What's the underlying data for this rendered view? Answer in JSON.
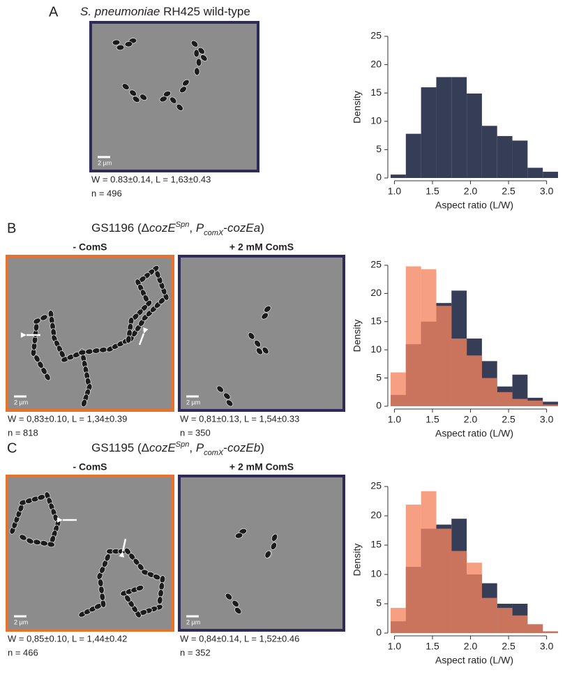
{
  "panels": [
    {
      "label": "A",
      "title": [
        {
          "text": "S. pneumoniae",
          "italic": true
        },
        {
          "text": " RH425 wild-type"
        }
      ],
      "images": [
        {
          "border": "#2e2a5a",
          "scale_bar": "2 µm",
          "stats": "W = 0.83±0.14, L = 1,63±0.43",
          "n": "n = 496"
        }
      ]
    },
    {
      "label": "B",
      "title": [
        {
          "text": "GS1196 (Δ"
        },
        {
          "text": "cozE",
          "italic": true
        },
        {
          "text": "Spn",
          "italic": true,
          "sup": true
        },
        {
          "text": ", "
        },
        {
          "text": "P",
          "italic": true
        },
        {
          "text": "comX",
          "italic": true,
          "sub": true
        },
        {
          "text": "-"
        },
        {
          "text": "cozEa",
          "italic": true
        },
        {
          "text": ")"
        }
      ],
      "images": [
        {
          "header": "- ComS",
          "border": "#e8722c",
          "scale_bar": "2 µm",
          "stats": "W = 0,83±0.10, L = 1,34±0.39",
          "n": "n = 818"
        },
        {
          "header": "+ 2 mM ComS",
          "border": "#2e2a5a",
          "scale_bar": "2 µm",
          "stats": "W = 0,81±0.13, L = 1,54±0.33",
          "n": "n = 350"
        }
      ]
    },
    {
      "label": "C",
      "title": [
        {
          "text": "GS1195 (Δ"
        },
        {
          "text": "cozE",
          "italic": true
        },
        {
          "text": "Spn",
          "italic": true,
          "sup": true
        },
        {
          "text": ", "
        },
        {
          "text": "P",
          "italic": true
        },
        {
          "text": "comX",
          "italic": true,
          "sub": true
        },
        {
          "text": "-"
        },
        {
          "text": "cozEb",
          "italic": true
        },
        {
          "text": ")"
        }
      ],
      "images": [
        {
          "header": "- ComS",
          "border": "#e8722c",
          "scale_bar": "2 µm",
          "stats": "W = 0,85±0.10, L = 1,44±0.42",
          "n": "n = 466"
        },
        {
          "header": "+ 2 mM ComS",
          "border": "#2e2a5a",
          "scale_bar": "2 µm",
          "stats": "W = 0,84±0.14, L = 1,52±0.46",
          "n": "n = 352"
        }
      ]
    }
  ],
  "chart_data": [
    {
      "type": "histogram",
      "xlabel": "Aspect ratio (L/W)",
      "ylabel": "Density",
      "bins": [
        0.95,
        1.15,
        1.35,
        1.55,
        1.75,
        1.95,
        2.15,
        2.35,
        2.55,
        2.75,
        2.95,
        3.15
      ],
      "series": [
        {
          "color": "#363d57",
          "values": [
            0.6,
            7.8,
            16,
            17.8,
            17.8,
            14.9,
            9.2,
            7.4,
            6.6,
            1.8,
            1.1
          ]
        }
      ],
      "xlim": [
        0.95,
        3.15
      ],
      "ylim": [
        0,
        25
      ],
      "xticks": [
        {
          "value": 1,
          "label": "1.0"
        },
        {
          "value": 1.5,
          "label": "1.5"
        },
        {
          "value": 2,
          "label": "2.0"
        },
        {
          "value": 2.5,
          "label": "2.5"
        },
        {
          "value": 3,
          "label": "3.0"
        }
      ],
      "yticks": [
        0,
        5,
        10,
        15,
        20,
        25
      ]
    },
    {
      "type": "histogram",
      "xlabel": "Aspect ratio (L/W)",
      "ylabel": "Density",
      "bins": [
        0.95,
        1.15,
        1.35,
        1.55,
        1.75,
        1.95,
        2.15,
        2.35,
        2.55,
        2.75,
        2.95,
        3.15
      ],
      "series": [
        {
          "color": "#363d57",
          "values": [
            2,
            11,
            15,
            18.3,
            20.5,
            12,
            8,
            3.5,
            5.6,
            1.5,
            0.8
          ]
        },
        {
          "color": "#f4845f",
          "values": [
            6,
            24.8,
            24.3,
            17.8,
            12,
            9,
            5,
            2.5,
            1.3,
            1,
            0.3
          ]
        }
      ],
      "xlim": [
        0.95,
        3.15
      ],
      "ylim": [
        0,
        25
      ],
      "xticks": [
        {
          "value": 1,
          "label": "1.0"
        },
        {
          "value": 1.5,
          "label": "1.5"
        },
        {
          "value": 2,
          "label": "2.0"
        },
        {
          "value": 2.5,
          "label": "2.5"
        },
        {
          "value": 3,
          "label": "3.0"
        }
      ],
      "yticks": [
        0,
        5,
        10,
        15,
        20,
        25
      ]
    },
    {
      "type": "histogram",
      "xlabel": "Aspect ratio (L/W)",
      "ylabel": "Density",
      "bins": [
        0.95,
        1.15,
        1.35,
        1.55,
        1.75,
        1.95,
        2.15,
        2.35,
        2.55,
        2.75,
        2.95,
        3.15
      ],
      "series": [
        {
          "color": "#363d57",
          "values": [
            2,
            11.3,
            17.8,
            18.5,
            19.5,
            10,
            8.5,
            5,
            5,
            1.5,
            0.3
          ]
        },
        {
          "color": "#f4845f",
          "values": [
            4.3,
            21.9,
            24.2,
            17.8,
            14,
            12,
            6,
            4.3,
            3,
            1.5,
            0.3
          ]
        }
      ],
      "xlim": [
        0.95,
        3.15
      ],
      "ylim": [
        0,
        25
      ],
      "xticks": [
        {
          "value": 1,
          "label": "1.0"
        },
        {
          "value": 1.5,
          "label": "1.5"
        },
        {
          "value": 2,
          "label": "2.0"
        },
        {
          "value": 2.5,
          "label": "2.5"
        },
        {
          "value": 3,
          "label": "3.0"
        }
      ],
      "yticks": [
        0,
        5,
        10,
        15,
        20,
        25
      ]
    }
  ]
}
